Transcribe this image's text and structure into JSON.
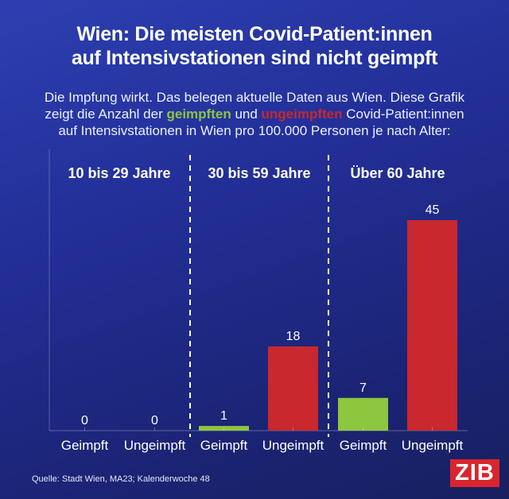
{
  "chart_data": {
    "type": "bar",
    "title": "Wien: Die meisten Covid-Patient:innen auf Intensivstationen sind nicht geimpft",
    "title_lines": [
      "Wien: Die meisten Covid-Patient:innen",
      "auf Intensivstationen sind nicht geimpft"
    ],
    "subtitle": {
      "line1": "Die Impfung wirkt. Das belegen aktuelle Daten aus Wien. Diese Grafik",
      "line2_a": "zeigt die Anzahl der ",
      "line2_green": "geimpften",
      "line2_b": " und ",
      "line2_red": "ungeimpften",
      "line2_c": " Covid-Patient:innen",
      "line3": "auf Intensivstationen in Wien pro 100.000 Personen je nach Alter:"
    },
    "groups": [
      {
        "label": "10 bis 29 Jahre",
        "bars": [
          {
            "category": "Geimpft",
            "value": 0
          },
          {
            "category": "Ungeimpft",
            "value": 0
          }
        ]
      },
      {
        "label": "30 bis 59 Jahre",
        "bars": [
          {
            "category": "Geimpft",
            "value": 1
          },
          {
            "category": "Ungeimpft",
            "value": 18
          }
        ]
      },
      {
        "label": "Über 60 Jahre",
        "bars": [
          {
            "category": "Geimpft",
            "value": 7
          },
          {
            "category": "Ungeimpft",
            "value": 45
          }
        ]
      }
    ],
    "colors": {
      "Geimpft": "#8dc63f",
      "Ungeimpft": "#c8282e"
    },
    "ylim": [
      0,
      50
    ],
    "grid": false,
    "source": "Quelle: Stadt Wien, MA23; Kalenderwoche 48"
  },
  "logo": "ZIB"
}
